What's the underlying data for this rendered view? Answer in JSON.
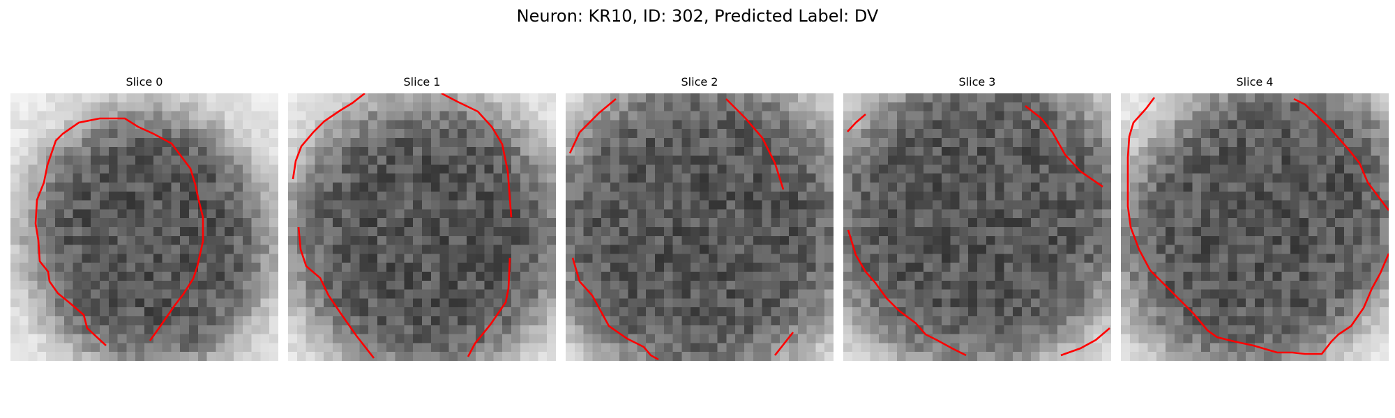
{
  "figure": {
    "title": "Neuron: KR10, ID: 302, Predicted Label: DV"
  },
  "panels": [
    {
      "title": "Slice 0"
    },
    {
      "title": "Slice 1"
    },
    {
      "title": "Slice 2"
    },
    {
      "title": "Slice 3"
    },
    {
      "title": "Slice 4"
    }
  ],
  "style": {
    "contour_color": "#ff0000",
    "colormap": "grayscale (dark = high intensity)"
  }
}
